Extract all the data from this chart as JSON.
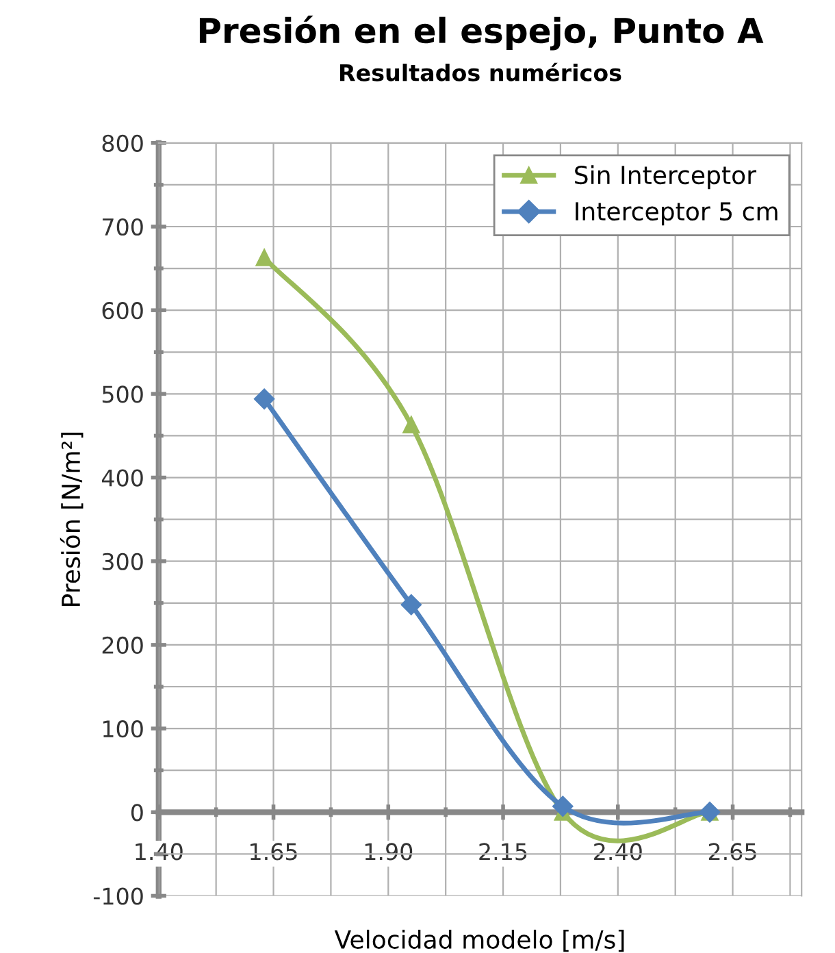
{
  "chart_data": {
    "type": "line",
    "title": "Presión en el espejo, Punto A",
    "subtitle": "Resultados numéricos",
    "xlabel": "Velocidad modelo [m/s]",
    "ylabel": "Presión [N/m²]",
    "x": [
      1.63,
      1.95,
      2.28,
      2.6
    ],
    "series": [
      {
        "name": "Sin Interceptor",
        "color": "#9bbb59",
        "marker": "triangle",
        "values": [
          663,
          463,
          0,
          0
        ]
      },
      {
        "name": "Interceptor 5 cm",
        "color": "#4f81bd",
        "marker": "diamond",
        "values": [
          494,
          248,
          7,
          0
        ]
      }
    ],
    "xlim": [
      1.4,
      2.8
    ],
    "xticks": [
      {
        "value": 1.4,
        "label": "1.40"
      },
      {
        "value": 1.65,
        "label": "1.65"
      },
      {
        "value": 1.9,
        "label": "1.90"
      },
      {
        "value": 2.15,
        "label": "2.15"
      },
      {
        "value": 2.4,
        "label": "2.40"
      },
      {
        "value": 2.65,
        "label": "2.65"
      }
    ],
    "ylim": [
      -100,
      800
    ],
    "yticks": [
      -100,
      0,
      100,
      200,
      300,
      400,
      500,
      600,
      700,
      800
    ],
    "grid": true,
    "legend": "top right",
    "line_style": "solid"
  }
}
